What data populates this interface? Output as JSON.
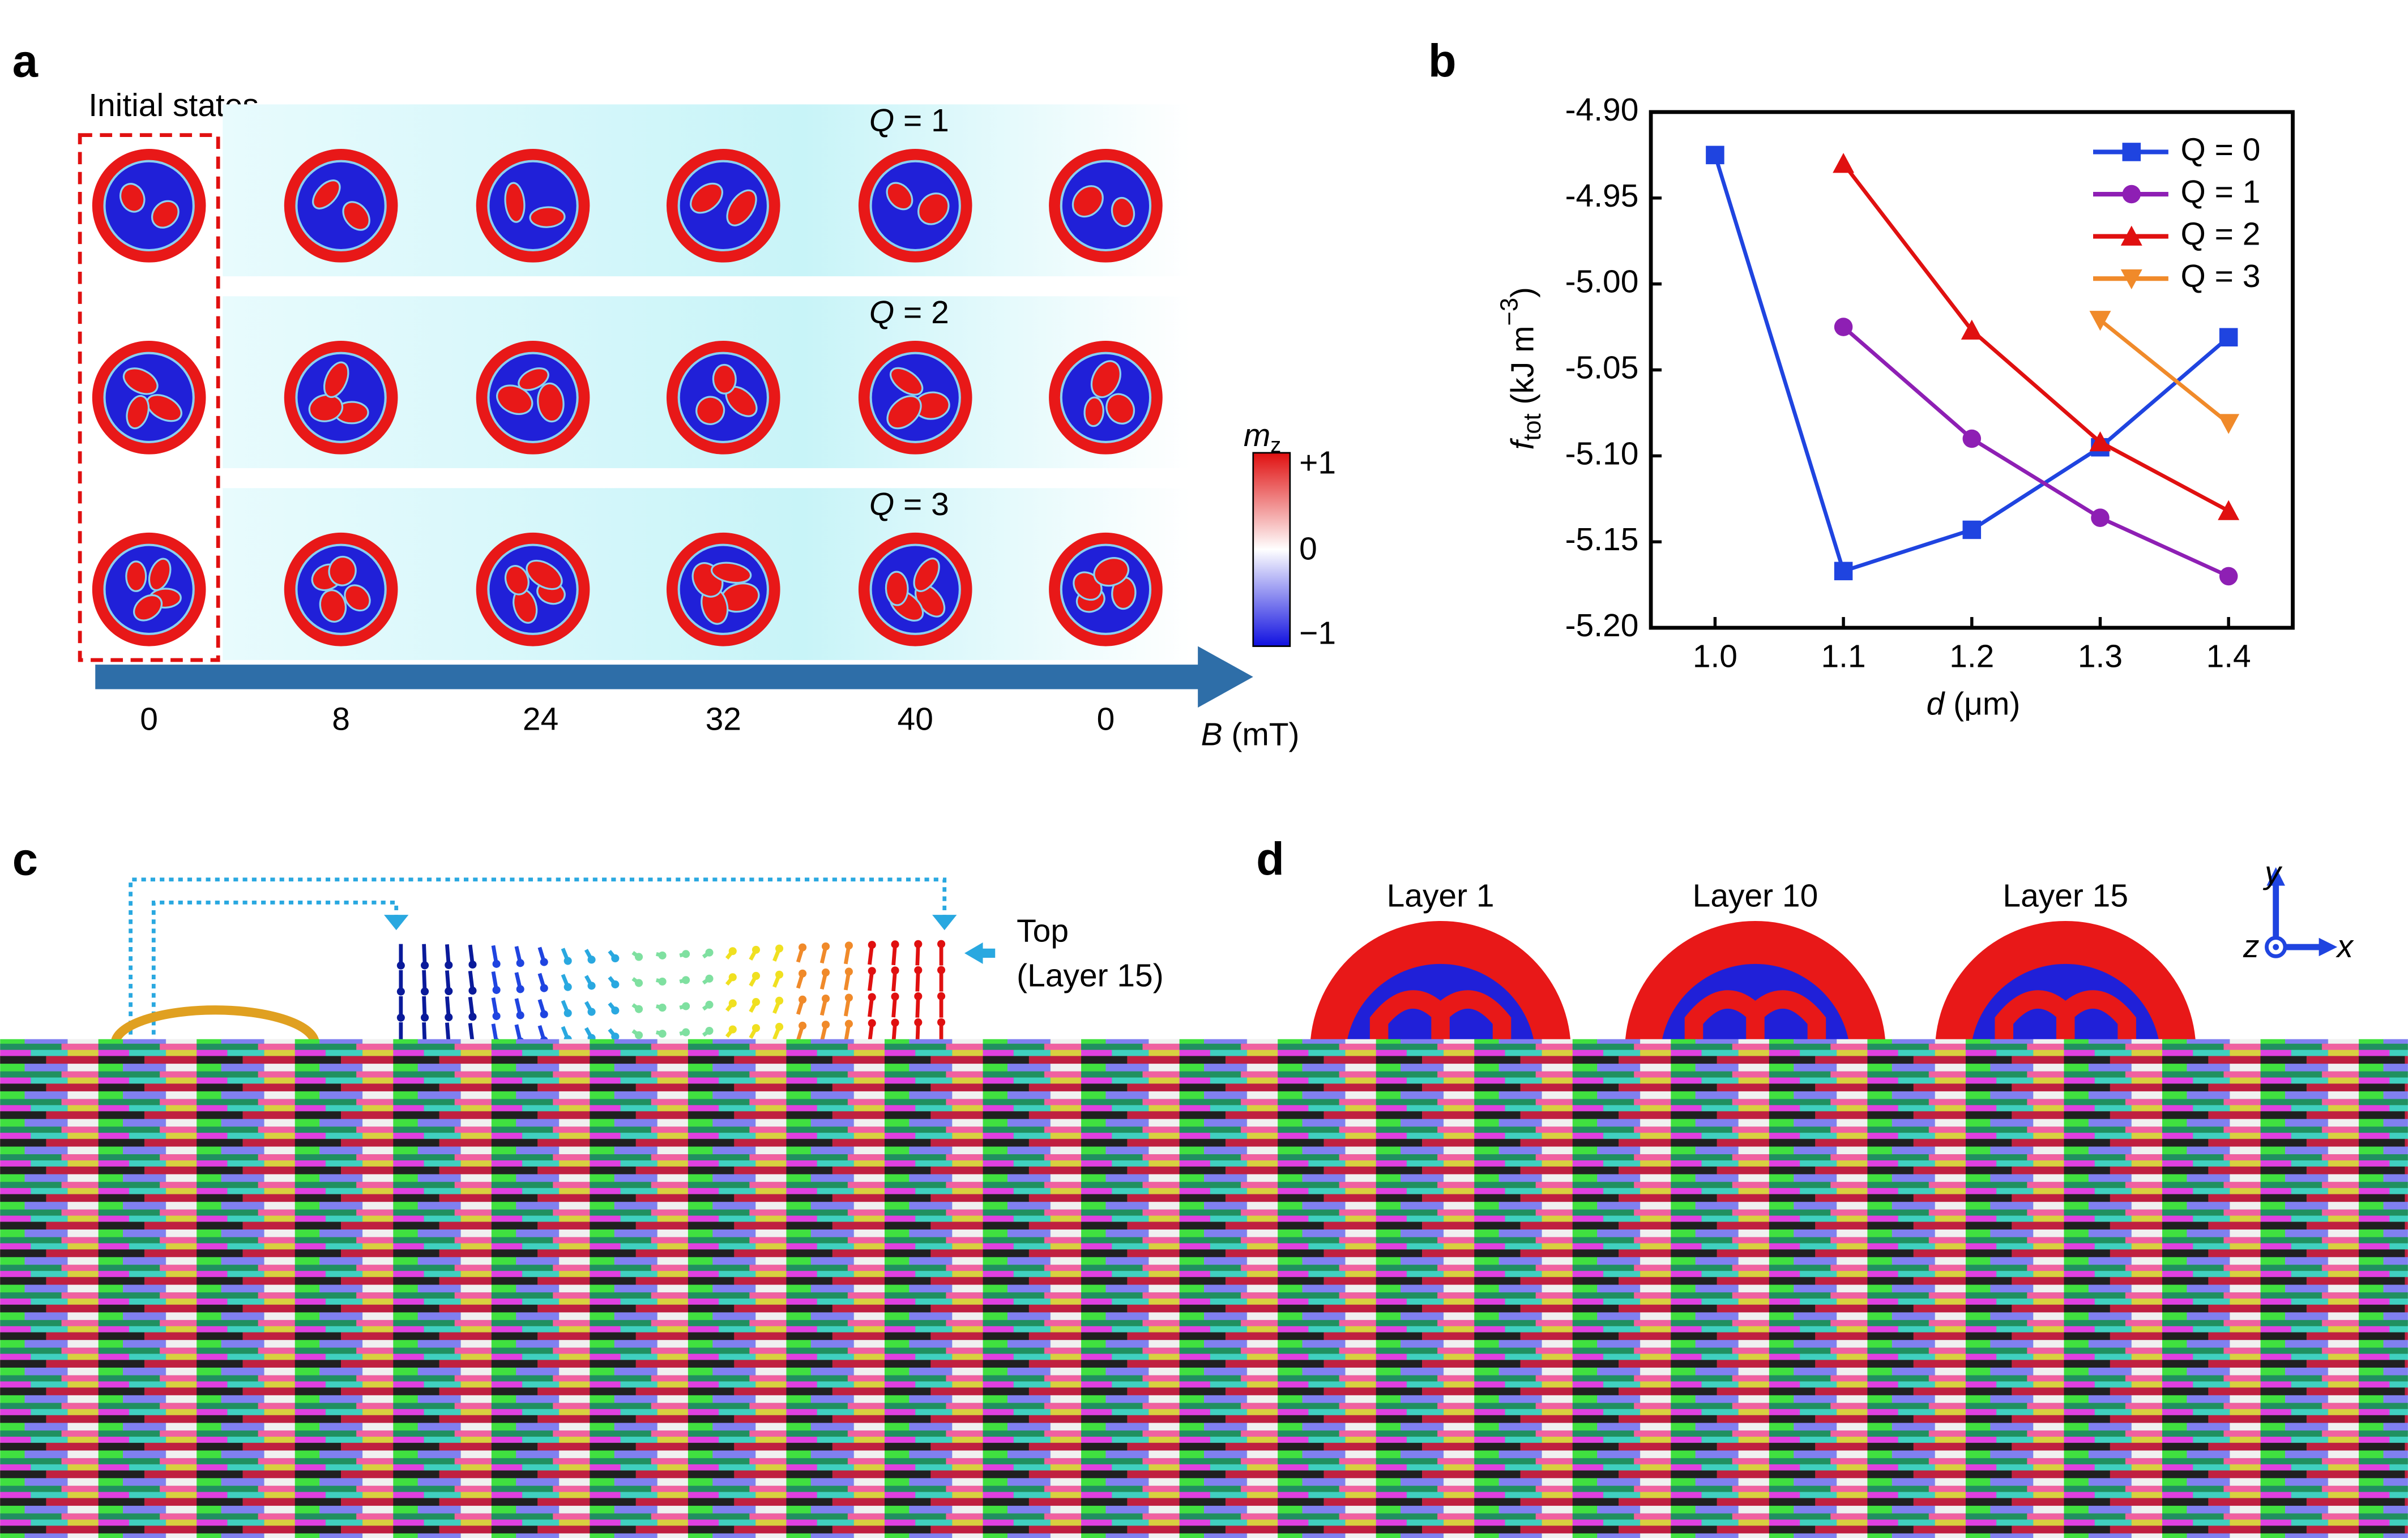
{
  "panel_a": {
    "label": "a",
    "initial_states_label": "Initial states",
    "rows": [
      {
        "var": "Q",
        "rest": " = 1"
      },
      {
        "var": "Q",
        "rest": " = 2"
      },
      {
        "var": "Q",
        "rest": " = 3"
      }
    ],
    "field_labels": [
      "0",
      "8",
      "24",
      "32",
      "40",
      "0"
    ],
    "axis_label": [
      "B",
      " (mT)"
    ],
    "colorbar": {
      "title": [
        "m",
        "z"
      ],
      "ticks": [
        "+1",
        "0",
        "−1"
      ]
    }
  },
  "chart_data": {
    "type": "line",
    "panel_label": "b",
    "x": [
      1.0,
      1.1,
      1.2,
      1.3,
      1.4
    ],
    "series": [
      {
        "name": "Q = 0",
        "color": "#1f44e0",
        "marker": "square",
        "values": [
          -4.925,
          -5.167,
          -5.143,
          -5.095,
          -5.031
        ]
      },
      {
        "name": "Q = 1",
        "color": "#8e1fb4",
        "marker": "circle",
        "values": [
          null,
          -5.025,
          -5.09,
          -5.136,
          -5.17
        ]
      },
      {
        "name": "Q = 2",
        "color": "#e01010",
        "marker": "triangle-up",
        "values": [
          null,
          -4.93,
          -5.027,
          -5.092,
          -5.132
        ]
      },
      {
        "name": "Q = 3",
        "color": "#f08a2a",
        "marker": "triangle-down",
        "values": [
          null,
          null,
          null,
          -5.021,
          -5.081
        ]
      }
    ],
    "xlim": [
      0.95,
      1.45
    ],
    "ylim": [
      -5.2,
      -4.9
    ],
    "xticks": [
      {
        "value": 1.0,
        "label": "1.0"
      },
      1.1,
      1.2,
      1.3,
      1.4
    ],
    "yticks": [
      {
        "value": -4.9,
        "label": "-4.90"
      },
      -4.95,
      {
        "value": -5.0,
        "label": "-5.00"
      },
      -5.05,
      {
        "value": -5.1,
        "label": "-5.10"
      },
      -5.15,
      {
        "value": -5.2,
        "label": "-5.20"
      }
    ],
    "x_label": [
      "d",
      " (μm)"
    ],
    "y_label": [
      "f",
      "tot",
      " (kJ m",
      "−3",
      ")"
    ],
    "legend": "top-right"
  },
  "panel_c": {
    "label": "c",
    "annotation": [
      "Top",
      "(Layer 15)"
    ]
  },
  "panel_d": {
    "label": "d",
    "layers": [
      "Layer 1",
      "Layer 10",
      "Layer 15"
    ],
    "axes": [
      "y",
      "z",
      "x"
    ]
  }
}
